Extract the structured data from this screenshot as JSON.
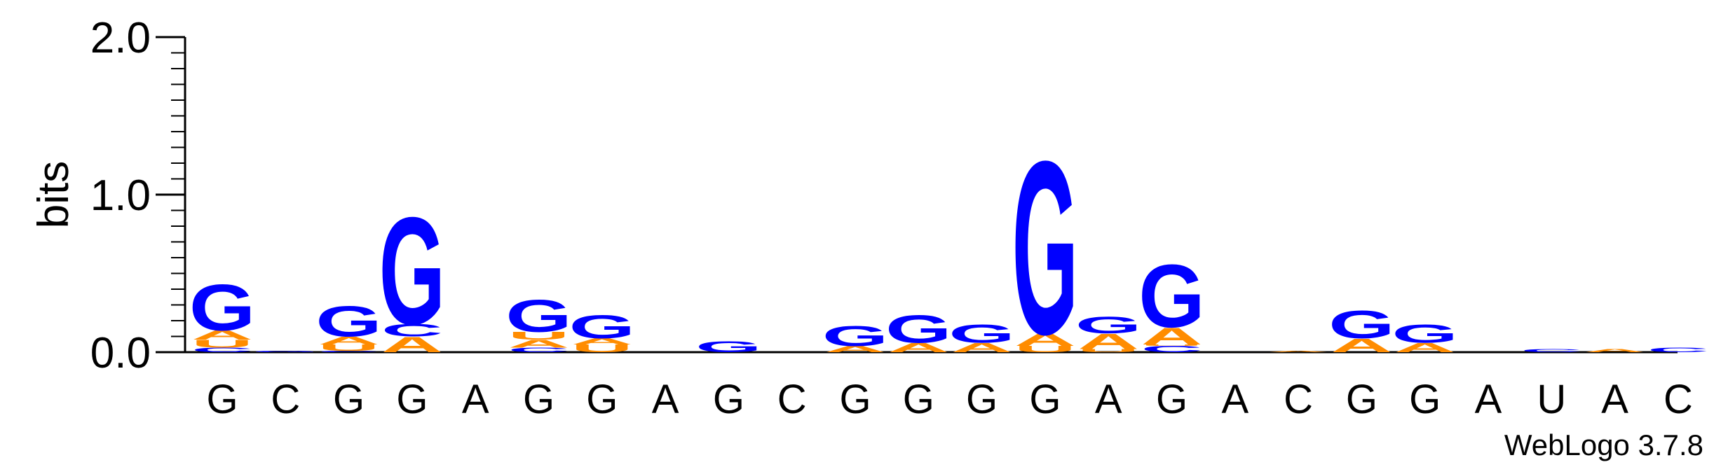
{
  "chart_data": {
    "type": "sequence-logo",
    "ylabel": "bits",
    "ylim": [
      0,
      2
    ],
    "yticks": [
      "0.0",
      "1.0",
      "2.0"
    ],
    "x_tick_labels": [
      "G",
      "C",
      "G",
      "G",
      "A",
      "G",
      "G",
      "A",
      "G",
      "C",
      "G",
      "G",
      "G",
      "G",
      "A",
      "G",
      "A",
      "C",
      "G",
      "G",
      "A",
      "U",
      "A",
      "C"
    ],
    "colors": {
      "G": "#0000ff",
      "A": "#ff8c00",
      "U": "#ff8c00",
      "C": "#0000ff"
    },
    "positions": [
      [
        [
          "C",
          0.03
        ],
        [
          "U",
          0.05
        ],
        [
          "A",
          0.06
        ],
        [
          "G",
          0.3
        ]
      ],
      [
        [
          "G",
          0.01
        ]
      ],
      [
        [
          "C",
          0.01
        ],
        [
          "U",
          0.04
        ],
        [
          "A",
          0.05
        ],
        [
          "G",
          0.2
        ]
      ],
      [
        [
          "A",
          0.1
        ],
        [
          "C",
          0.08
        ],
        [
          "G",
          0.7
        ]
      ],
      [],
      [
        [
          "C",
          0.03
        ],
        [
          "A",
          0.05
        ],
        [
          "U",
          0.05
        ],
        [
          "G",
          0.21
        ]
      ],
      [
        [
          "U",
          0.05
        ],
        [
          "A",
          0.04
        ],
        [
          "G",
          0.15
        ]
      ],
      [],
      [
        [
          "G",
          0.07
        ]
      ],
      [],
      [
        [
          "A",
          0.04
        ],
        [
          "G",
          0.13
        ]
      ],
      [
        [
          "A",
          0.06
        ],
        [
          "G",
          0.18
        ]
      ],
      [
        [
          "A",
          0.06
        ],
        [
          "G",
          0.12
        ]
      ],
      [
        [
          "U",
          0.04
        ],
        [
          "A",
          0.08
        ],
        [
          "G",
          1.13
        ]
      ],
      [
        [
          "U",
          0.02
        ],
        [
          "A",
          0.1
        ],
        [
          "G",
          0.11
        ]
      ],
      [
        [
          "C",
          0.04
        ],
        [
          "U",
          0.01
        ],
        [
          "A",
          0.11
        ],
        [
          "G",
          0.41
        ]
      ],
      [],
      [
        [
          "A",
          0.01
        ]
      ],
      [
        [
          "A",
          0.09
        ],
        [
          "G",
          0.18
        ]
      ],
      [
        [
          "A",
          0.06
        ],
        [
          "G",
          0.12
        ]
      ],
      [],
      [
        [
          "C",
          0.02
        ]
      ],
      [
        [
          "A",
          0.02
        ]
      ],
      [
        [
          "C",
          0.03
        ]
      ]
    ],
    "credit": "WebLogo 3.7.8"
  }
}
